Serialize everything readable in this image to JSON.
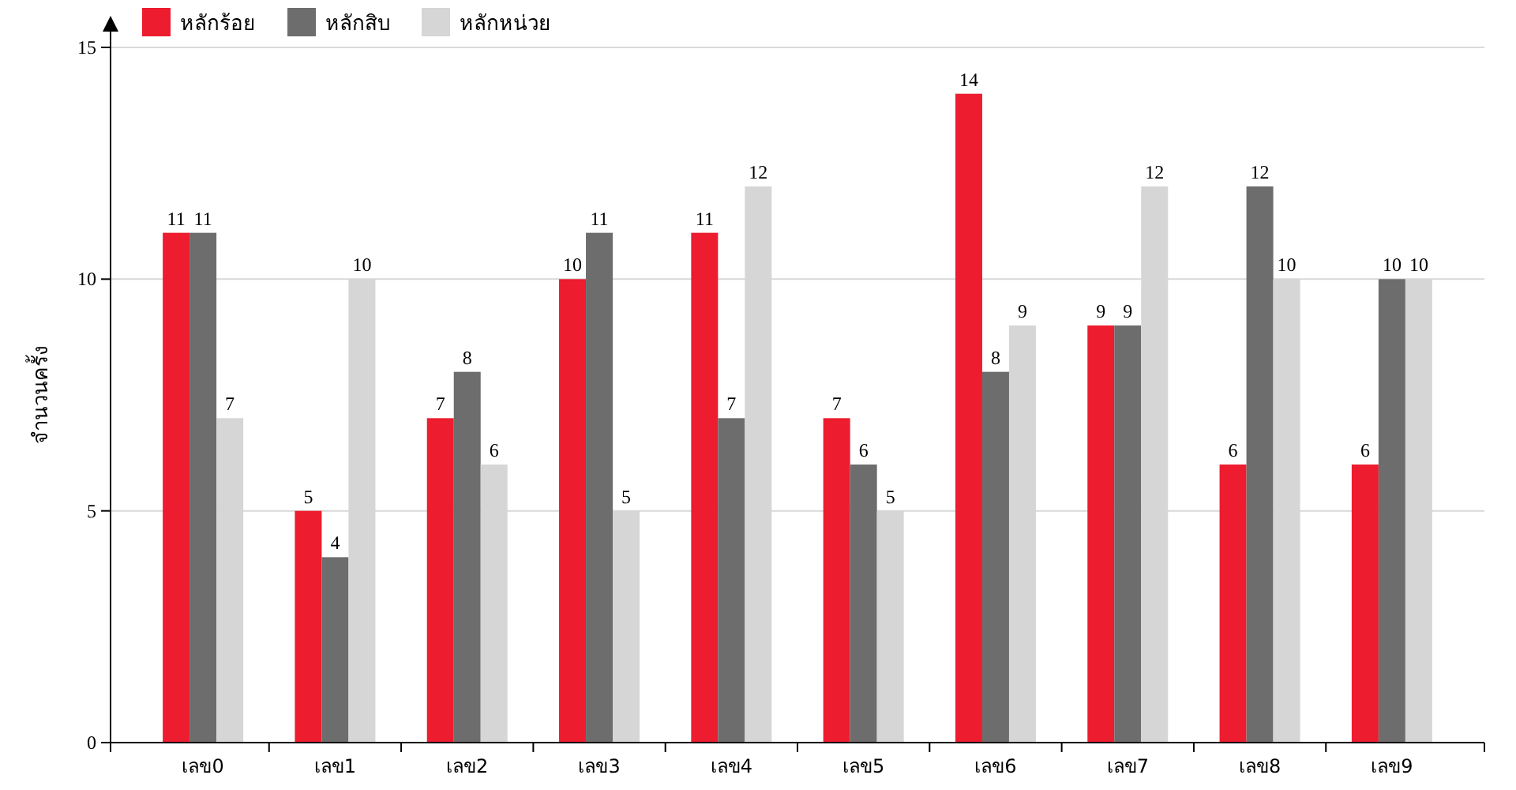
{
  "chart_data": {
    "type": "bar",
    "ylabel": "จำนวนครั้ง",
    "categories": [
      "เลข0",
      "เลข1",
      "เลข2",
      "เลข3",
      "เลข4",
      "เลข5",
      "เลข6",
      "เลข7",
      "เลข8",
      "เลข9"
    ],
    "series": [
      {
        "name": "หลักร้อย",
        "color": "#ed1c2e",
        "values": [
          11,
          5,
          7,
          10,
          11,
          7,
          14,
          9,
          6,
          6
        ]
      },
      {
        "name": "หลักสิบ",
        "color": "#6d6d6d",
        "values": [
          11,
          4,
          8,
          11,
          7,
          6,
          8,
          9,
          12,
          10
        ]
      },
      {
        "name": "หลักหน่วย",
        "color": "#d6d6d6",
        "values": [
          7,
          10,
          6,
          5,
          12,
          5,
          9,
          12,
          10,
          10
        ]
      }
    ],
    "ylim": [
      0,
      15
    ],
    "yticks": [
      0,
      5,
      10,
      15
    ],
    "grid": "y",
    "legend": "top left",
    "data_labels": true
  }
}
